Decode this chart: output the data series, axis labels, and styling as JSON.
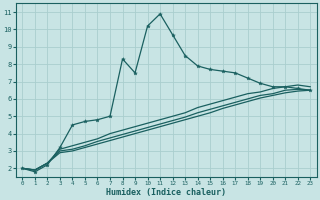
{
  "xlabel": "Humidex (Indice chaleur)",
  "background_color": "#c8e4e4",
  "line_color": "#1a6060",
  "grid_color": "#aacece",
  "xlim": [
    -0.5,
    23.5
  ],
  "ylim": [
    1.5,
    11.5
  ],
  "xticks": [
    0,
    1,
    2,
    3,
    4,
    5,
    6,
    7,
    8,
    9,
    10,
    11,
    12,
    13,
    14,
    15,
    16,
    17,
    18,
    19,
    20,
    21,
    22,
    23
  ],
  "yticks": [
    2,
    3,
    4,
    5,
    6,
    7,
    8,
    9,
    10,
    11
  ],
  "lines": [
    {
      "x": [
        0,
        1,
        2,
        3,
        4,
        5,
        6,
        7,
        8,
        9,
        10,
        11,
        12,
        13,
        14,
        15,
        16,
        17,
        18,
        19,
        20,
        21,
        22,
        23
      ],
      "y": [
        2.0,
        1.8,
        2.2,
        3.2,
        4.5,
        4.7,
        4.8,
        5.0,
        8.3,
        7.5,
        10.2,
        10.9,
        9.7,
        8.5,
        7.9,
        7.7,
        7.6,
        7.5,
        7.2,
        6.9,
        6.7,
        6.7,
        6.6,
        6.5
      ],
      "marker": true
    },
    {
      "x": [
        0,
        1,
        2,
        3,
        4,
        5,
        6,
        7,
        8,
        9,
        10,
        11,
        12,
        13,
        14,
        15,
        16,
        17,
        18,
        19,
        20,
        21,
        22,
        23
      ],
      "y": [
        2.0,
        1.9,
        2.3,
        3.1,
        3.3,
        3.5,
        3.7,
        4.0,
        4.2,
        4.4,
        4.6,
        4.8,
        5.0,
        5.2,
        5.5,
        5.7,
        5.9,
        6.1,
        6.3,
        6.4,
        6.6,
        6.7,
        6.8,
        6.7
      ],
      "marker": false
    },
    {
      "x": [
        0,
        1,
        2,
        3,
        4,
        5,
        6,
        7,
        8,
        9,
        10,
        11,
        12,
        13,
        14,
        15,
        16,
        17,
        18,
        19,
        20,
        21,
        22,
        23
      ],
      "y": [
        2.0,
        1.9,
        2.3,
        3.0,
        3.1,
        3.3,
        3.55,
        3.75,
        3.95,
        4.15,
        4.35,
        4.55,
        4.75,
        4.95,
        5.2,
        5.4,
        5.6,
        5.8,
        6.0,
        6.2,
        6.3,
        6.5,
        6.55,
        6.5
      ],
      "marker": false
    },
    {
      "x": [
        0,
        1,
        2,
        3,
        4,
        5,
        6,
        7,
        8,
        9,
        10,
        11,
        12,
        13,
        14,
        15,
        16,
        17,
        18,
        19,
        20,
        21,
        22,
        23
      ],
      "y": [
        2.0,
        1.9,
        2.3,
        2.9,
        3.0,
        3.2,
        3.4,
        3.6,
        3.8,
        4.0,
        4.2,
        4.4,
        4.6,
        4.8,
        5.0,
        5.2,
        5.45,
        5.65,
        5.85,
        6.05,
        6.2,
        6.35,
        6.45,
        6.5
      ],
      "marker": false
    }
  ]
}
